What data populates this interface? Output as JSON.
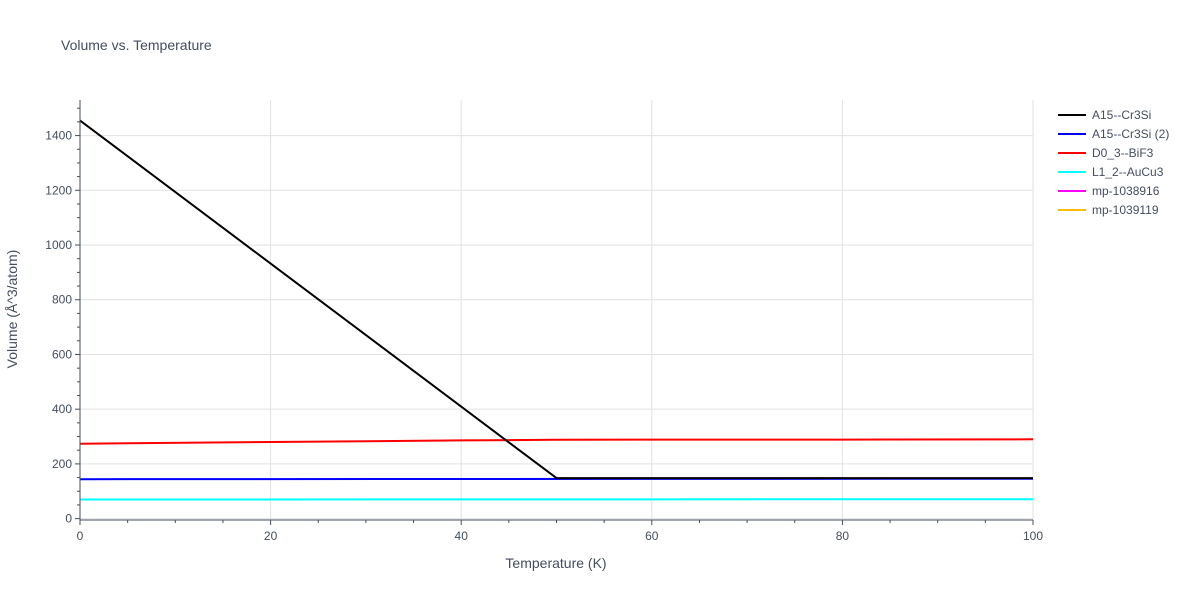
{
  "chart_data": {
    "type": "line",
    "title": "Volume vs. Temperature",
    "xlabel": "Temperature (K)",
    "ylabel": "Volume (Å^3/atom)",
    "xlim": [
      0,
      100
    ],
    "ylim": [
      -5,
      1530
    ],
    "x_ticks": [
      0,
      20,
      40,
      60,
      80,
      100
    ],
    "y_ticks": [
      0,
      200,
      400,
      600,
      800,
      1000,
      1200,
      1400
    ],
    "grid": true,
    "legend_position": "right",
    "series": [
      {
        "name": "A15--Cr3Si",
        "color": "#000000",
        "x": [
          0,
          50,
          100
        ],
        "y": [
          1455,
          148,
          148
        ]
      },
      {
        "name": "A15--Cr3Si (2)",
        "color": "#0000ff",
        "x": [
          0,
          100
        ],
        "y": [
          144,
          146
        ]
      },
      {
        "name": "D0_3--BiF3",
        "color": "#ff0000",
        "x": [
          0,
          20,
          40,
          50,
          60,
          80,
          100
        ],
        "y": [
          274,
          280,
          286,
          288,
          289,
          289,
          290
        ]
      },
      {
        "name": "L1_2--AuCu3",
        "color": "#00ffff",
        "x": [
          0,
          100
        ],
        "y": [
          70,
          71
        ]
      },
      {
        "name": "mp-1038916",
        "color": "#ff00ff",
        "x": [],
        "y": []
      },
      {
        "name": "mp-1039119",
        "color": "#ffbf00",
        "x": [],
        "y": []
      }
    ]
  }
}
